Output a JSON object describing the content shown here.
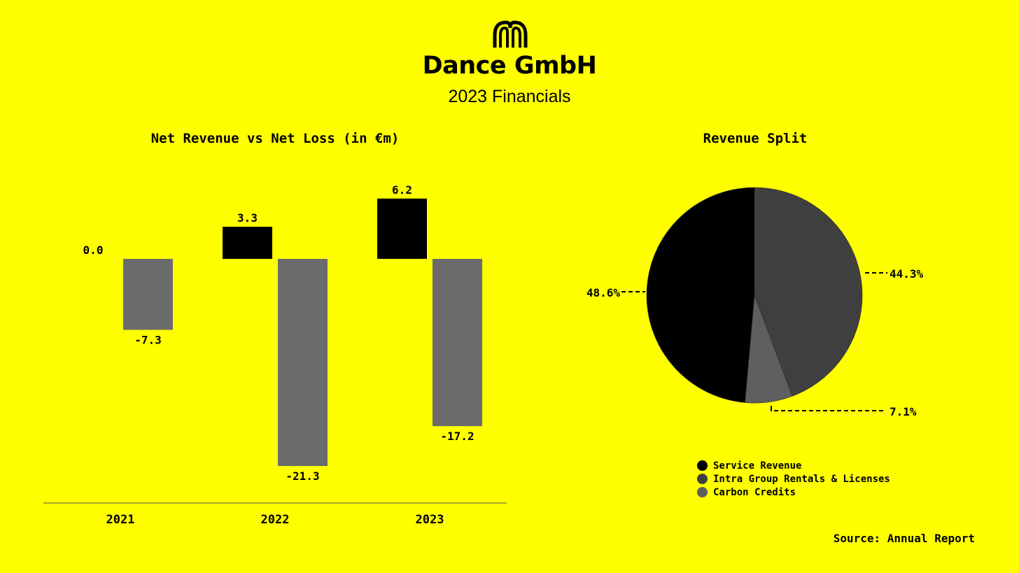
{
  "header": {
    "logo_icon": "dance-m-logo",
    "title": "Dance GmbH",
    "subtitle": "2023 Financials"
  },
  "colors": {
    "background": "#ffff00",
    "net_revenue": "#000000",
    "net_loss": "#6b6b6b",
    "service_revenue": "#000000",
    "intra_group": "#3f3f3f",
    "carbon_credits": "#5f5f5f"
  },
  "chart_data": [
    {
      "type": "bar",
      "title": "Net Revenue vs Net Loss (in €m)",
      "categories": [
        "2021",
        "2022",
        "2023"
      ],
      "series": [
        {
          "values": [
            0.0,
            3.3,
            6.2
          ],
          "labels": [
            "0.0",
            "3.3",
            "6.2"
          ]
        },
        {
          "values": [
            -7.3,
            -21.3,
            -17.2
          ],
          "labels": [
            "-7.3",
            "-21.3",
            "-17.2"
          ]
        }
      ],
      "grid": false,
      "legend": "none"
    },
    {
      "type": "pie",
      "title": "Revenue Split",
      "slices": [
        {
          "name": "Service Revenue",
          "value": 48.6,
          "label": "48.6%"
        },
        {
          "name": "Intra Group Rentals & Licenses",
          "value": 44.3,
          "label": "44.3%"
        },
        {
          "name": "Carbon Credits",
          "value": 7.1,
          "label": "7.1%"
        }
      ],
      "legend": "bottom"
    }
  ],
  "footer": {
    "source": "Source: Annual Report"
  }
}
